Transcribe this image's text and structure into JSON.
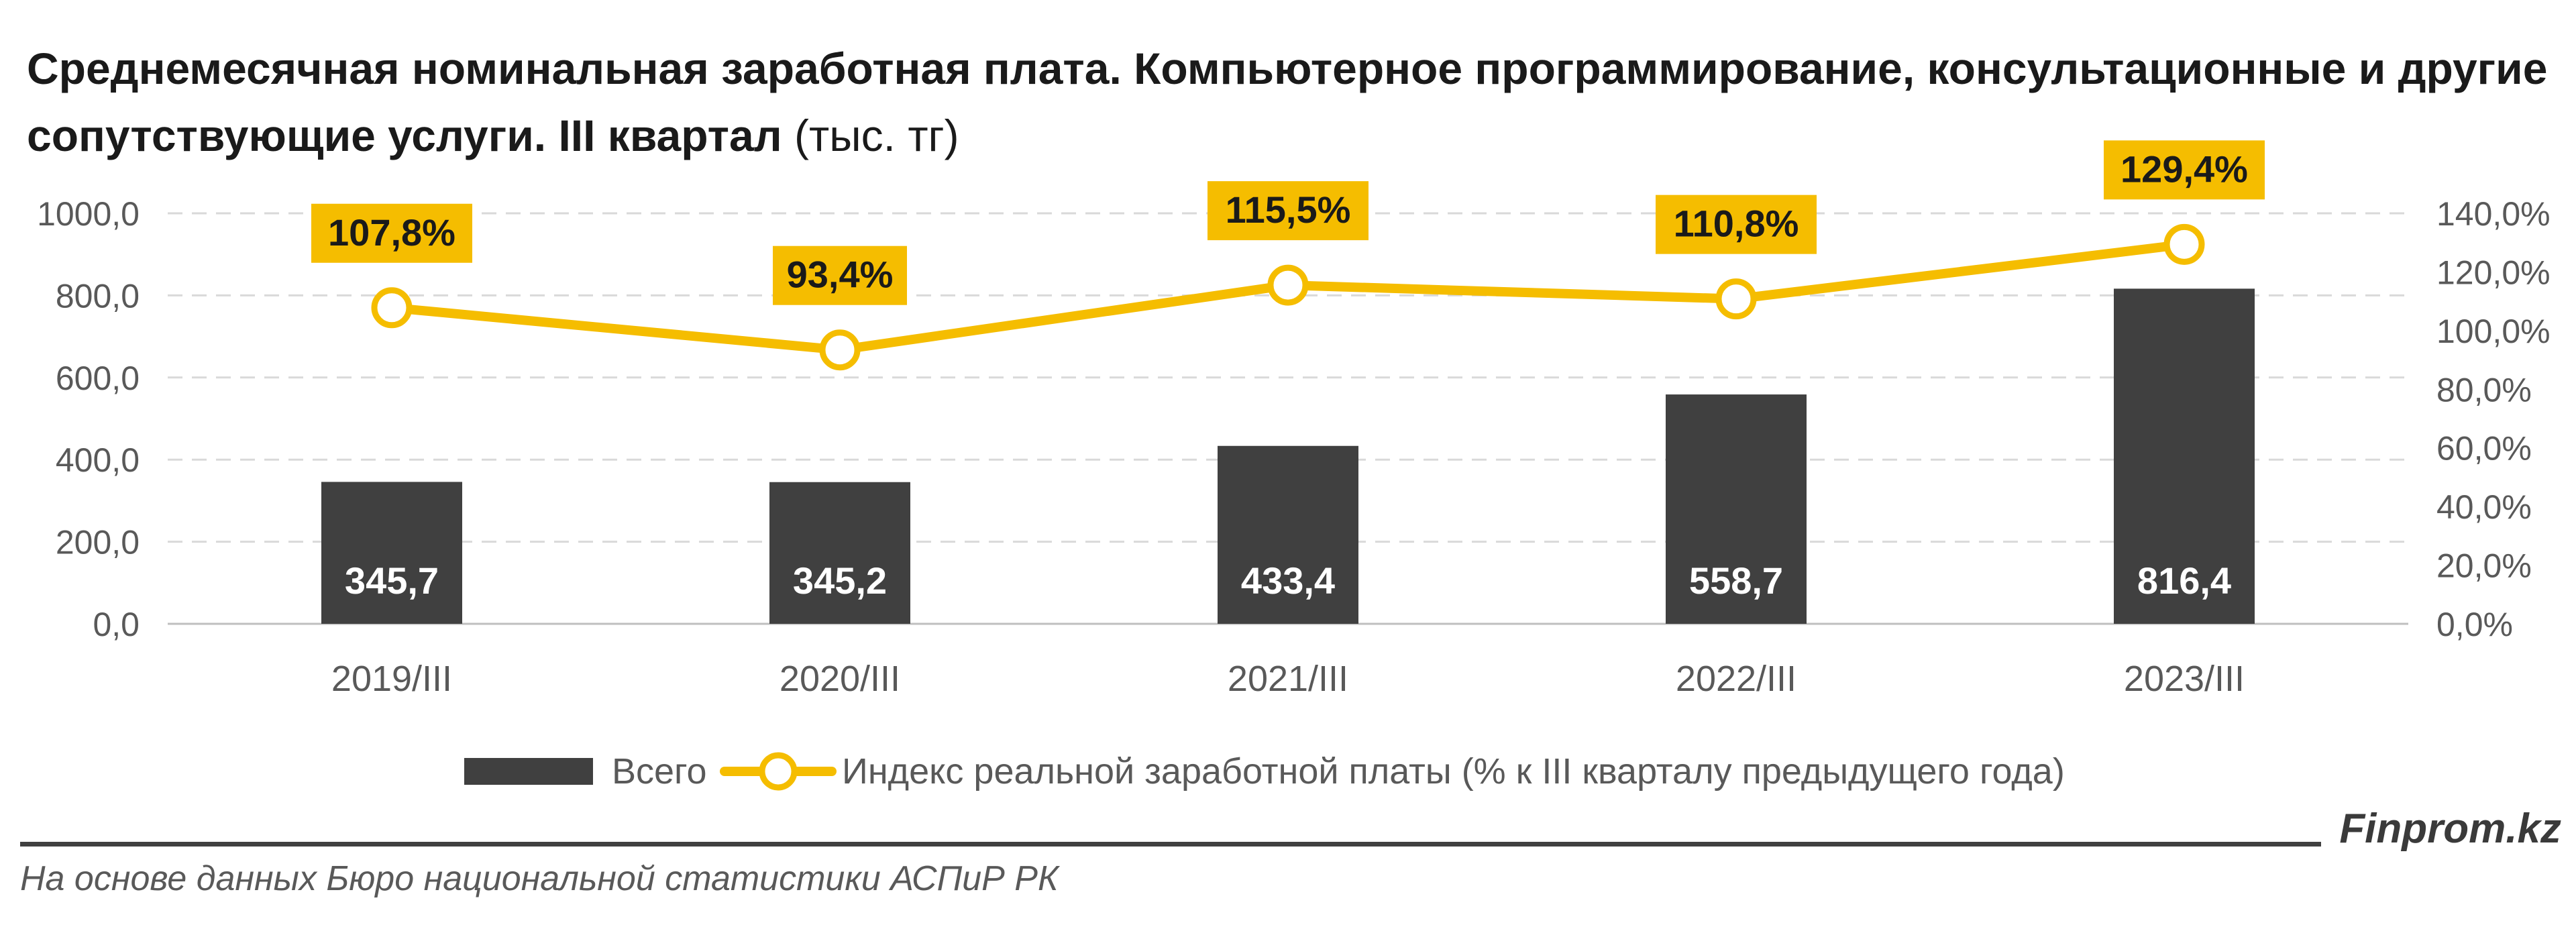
{
  "title_main": "Среднемесячная номинальная заработная плата. Компьютерное программирование, консультационные и другие сопутствующие услуги. III квартал",
  "title_unit": "(тыс. тг)",
  "brand": "Finprom.kz",
  "source": "На основе данных Бюро национальной статистики АСПиР РК",
  "colors": {
    "bar": "#404040",
    "line": "#F5BD00",
    "label_bg": "#F5BD00",
    "grid": "#D9D9D9",
    "axis_text": "#595959"
  },
  "chart_data": {
    "type": "bar",
    "categories": [
      "2019/III",
      "2020/III",
      "2021/III",
      "2022/III",
      "2023/III"
    ],
    "series": [
      {
        "name": "Всего",
        "type": "bar",
        "axis": "left",
        "values": [
          345.7,
          345.2,
          433.4,
          558.7,
          816.4
        ],
        "labels": [
          "345,7",
          "345,2",
          "433,4",
          "558,7",
          "816,4"
        ]
      },
      {
        "name": "Индекс реальной заработной платы (% к III кварталу предыдущего года)",
        "type": "line",
        "axis": "right",
        "values": [
          107.8,
          93.4,
          115.5,
          110.8,
          129.4
        ],
        "labels": [
          "107,8%",
          "93,4%",
          "115,5%",
          "110,8%",
          "129,4%"
        ]
      }
    ],
    "y_left": {
      "min": 0,
      "max": 1000,
      "ticks": [
        "0,0",
        "200,0",
        "400,0",
        "600,0",
        "800,0",
        "1000,0"
      ]
    },
    "y_right": {
      "min": 0,
      "max": 140,
      "ticks": [
        "0,0%",
        "20,0%",
        "40,0%",
        "60,0%",
        "80,0%",
        "100,0%",
        "120,0%",
        "140,0%"
      ]
    },
    "grid": true,
    "legend_position": "bottom"
  }
}
